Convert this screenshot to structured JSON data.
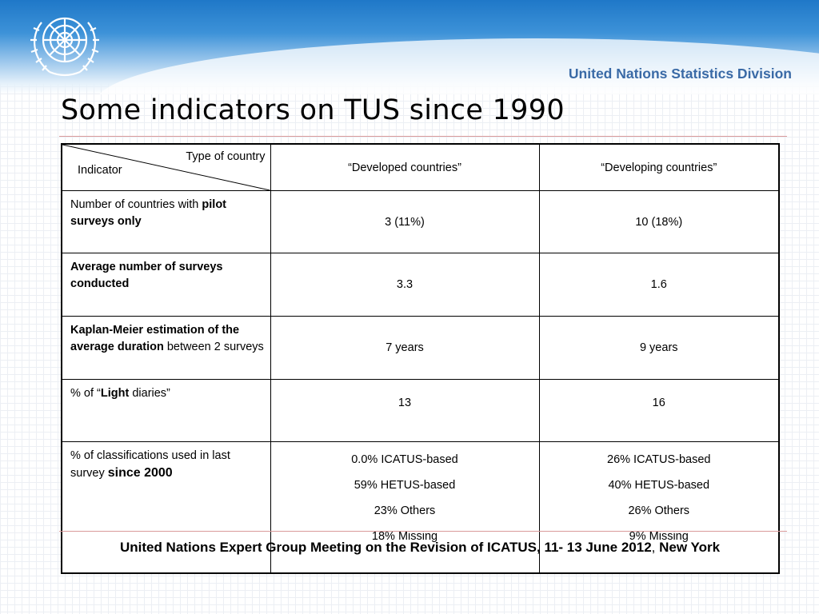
{
  "header": {
    "division_name": "United Nations Statistics Division",
    "emblem_icon": "un-emblem-icon",
    "band_color": "#2a84d0"
  },
  "slide": {
    "title": "Some indicators on TUS since 1990"
  },
  "table": {
    "corner_top": "Type of country",
    "corner_bottom": "Indicator",
    "columns": [
      "“Developed countries”",
      "“Developing countries”"
    ],
    "rows": [
      {
        "indicator": [
          "Number of countries with ",
          "pilot surveys only"
        ],
        "developed": "3 (11%)",
        "developing": "10 (18%)"
      },
      {
        "indicator": [
          "Average number of surveys conducted"
        ],
        "developed": "3.3",
        "developing": "1.6"
      },
      {
        "indicator": [
          "Kaplan-Meier estimation of the average duration",
          " between 2 surveys"
        ],
        "developed": "7 years",
        "developing": "9 years"
      },
      {
        "indicator": [
          "% of “",
          "Light",
          " diaries”"
        ],
        "developed": "13",
        "developing": "16"
      },
      {
        "indicator": [
          "% of classifications used in last survey ",
          "since 2000"
        ],
        "developed": [
          "0.0% ICATUS-based",
          "59% HETUS-based",
          "23% Others",
          "18% Missing"
        ],
        "developing": [
          "26% ICATUS-based",
          "40% HETUS-based",
          "26% Others",
          "9% Missing"
        ]
      }
    ]
  },
  "footer": {
    "text_bold": "United Nations Expert Group Meeting on the Revision of ICATUS, 11- 13 June 2012",
    "separator": ",",
    "location": "New York"
  }
}
